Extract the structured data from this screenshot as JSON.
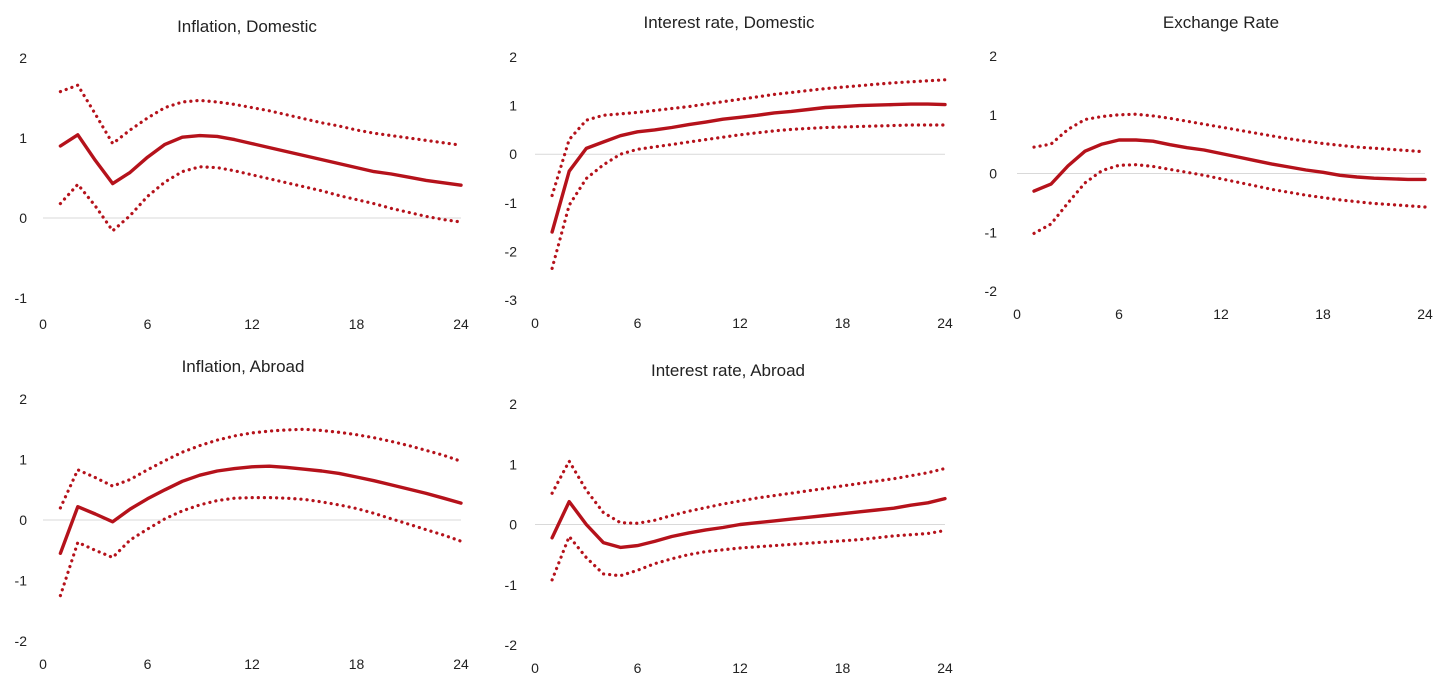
{
  "colors": {
    "line": "#b5121b",
    "zero_line": "#d9d9d9",
    "text": "#222222"
  },
  "chart_data": [
    {
      "type": "line",
      "title": "Inflation, Domestic",
      "x": [
        1,
        2,
        3,
        4,
        5,
        6,
        7,
        8,
        9,
        10,
        11,
        12,
        13,
        14,
        15,
        16,
        17,
        18,
        19,
        20,
        21,
        22,
        23,
        24
      ],
      "xticks": [
        0,
        6,
        12,
        18,
        24
      ],
      "yticks": [
        -1,
        0,
        1,
        2
      ],
      "xlim": [
        0,
        24
      ],
      "ylim": [
        -1,
        2
      ],
      "series": [
        {
          "role": "estimate",
          "style": "solid",
          "values": [
            0.9,
            1.04,
            0.72,
            0.43,
            0.57,
            0.76,
            0.92,
            1.01,
            1.03,
            1.02,
            0.98,
            0.93,
            0.88,
            0.83,
            0.78,
            0.73,
            0.68,
            0.63,
            0.58,
            0.55,
            0.51,
            0.47,
            0.44,
            0.41
          ]
        },
        {
          "role": "upper",
          "style": "dotted",
          "values": [
            1.58,
            1.66,
            1.3,
            0.93,
            1.1,
            1.25,
            1.38,
            1.45,
            1.47,
            1.45,
            1.42,
            1.38,
            1.34,
            1.29,
            1.24,
            1.19,
            1.15,
            1.1,
            1.06,
            1.03,
            1.0,
            0.97,
            0.94,
            0.91
          ]
        },
        {
          "role": "lower",
          "style": "dotted",
          "values": [
            0.18,
            0.42,
            0.15,
            -0.16,
            0.03,
            0.27,
            0.45,
            0.58,
            0.64,
            0.63,
            0.59,
            0.54,
            0.49,
            0.44,
            0.39,
            0.34,
            0.28,
            0.23,
            0.18,
            0.12,
            0.07,
            0.02,
            -0.02,
            -0.05
          ]
        }
      ]
    },
    {
      "type": "line",
      "title": "Interest rate, Domestic",
      "x": [
        1,
        2,
        3,
        4,
        5,
        6,
        7,
        8,
        9,
        10,
        11,
        12,
        13,
        14,
        15,
        16,
        17,
        18,
        19,
        20,
        21,
        22,
        23,
        24
      ],
      "xticks": [
        0,
        6,
        12,
        18,
        24
      ],
      "yticks": [
        -3,
        -2,
        -1,
        0,
        1,
        2
      ],
      "xlim": [
        0,
        24
      ],
      "ylim": [
        -3,
        2
      ],
      "series": [
        {
          "role": "estimate",
          "style": "solid",
          "values": [
            -1.6,
            -0.35,
            0.12,
            0.25,
            0.38,
            0.46,
            0.5,
            0.55,
            0.61,
            0.66,
            0.72,
            0.76,
            0.8,
            0.85,
            0.88,
            0.92,
            0.96,
            0.98,
            1.0,
            1.01,
            1.02,
            1.03,
            1.03,
            1.02
          ]
        },
        {
          "role": "upper",
          "style": "dotted",
          "values": [
            -0.85,
            0.3,
            0.7,
            0.8,
            0.83,
            0.86,
            0.9,
            0.94,
            0.98,
            1.03,
            1.08,
            1.13,
            1.18,
            1.23,
            1.27,
            1.31,
            1.35,
            1.38,
            1.41,
            1.44,
            1.47,
            1.49,
            1.51,
            1.53
          ]
        },
        {
          "role": "lower",
          "style": "dotted",
          "values": [
            -2.35,
            -1.05,
            -0.5,
            -0.22,
            0.0,
            0.1,
            0.15,
            0.2,
            0.25,
            0.3,
            0.35,
            0.4,
            0.44,
            0.48,
            0.51,
            0.53,
            0.55,
            0.56,
            0.57,
            0.58,
            0.59,
            0.6,
            0.6,
            0.6
          ]
        }
      ]
    },
    {
      "type": "line",
      "title": "Exchange Rate",
      "x": [
        1,
        2,
        3,
        4,
        5,
        6,
        7,
        8,
        9,
        10,
        11,
        12,
        13,
        14,
        15,
        16,
        17,
        18,
        19,
        20,
        21,
        22,
        23,
        24
      ],
      "xticks": [
        0,
        6,
        12,
        18,
        24
      ],
      "yticks": [
        -2,
        -1,
        0,
        1,
        2
      ],
      "xlim": [
        0,
        24
      ],
      "ylim": [
        -2,
        2
      ],
      "series": [
        {
          "role": "estimate",
          "style": "solid",
          "values": [
            -0.3,
            -0.18,
            0.13,
            0.38,
            0.5,
            0.57,
            0.57,
            0.55,
            0.49,
            0.44,
            0.4,
            0.34,
            0.28,
            0.22,
            0.16,
            0.11,
            0.06,
            0.02,
            -0.03,
            -0.06,
            -0.08,
            -0.09,
            -0.1,
            -0.1
          ]
        },
        {
          "role": "upper",
          "style": "dotted",
          "values": [
            0.45,
            0.5,
            0.75,
            0.92,
            0.97,
            1.0,
            1.01,
            0.98,
            0.94,
            0.89,
            0.84,
            0.79,
            0.74,
            0.69,
            0.64,
            0.59,
            0.55,
            0.51,
            0.48,
            0.45,
            0.43,
            0.41,
            0.39,
            0.37
          ]
        },
        {
          "role": "lower",
          "style": "dotted",
          "values": [
            -1.02,
            -0.86,
            -0.5,
            -0.16,
            0.05,
            0.14,
            0.15,
            0.12,
            0.07,
            0.02,
            -0.03,
            -0.09,
            -0.15,
            -0.21,
            -0.27,
            -0.32,
            -0.37,
            -0.41,
            -0.45,
            -0.48,
            -0.51,
            -0.53,
            -0.55,
            -0.57
          ]
        }
      ]
    },
    {
      "type": "line",
      "title": "Inflation, Abroad",
      "x": [
        1,
        2,
        3,
        4,
        5,
        6,
        7,
        8,
        9,
        10,
        11,
        12,
        13,
        14,
        15,
        16,
        17,
        18,
        19,
        20,
        21,
        22,
        23,
        24
      ],
      "xticks": [
        0,
        6,
        12,
        18,
        24
      ],
      "yticks": [
        -2,
        -1,
        0,
        1,
        2
      ],
      "xlim": [
        0,
        24
      ],
      "ylim": [
        -2,
        2
      ],
      "series": [
        {
          "role": "estimate",
          "style": "solid",
          "values": [
            -0.55,
            0.22,
            0.1,
            -0.03,
            0.18,
            0.35,
            0.5,
            0.64,
            0.74,
            0.81,
            0.85,
            0.88,
            0.89,
            0.87,
            0.84,
            0.81,
            0.77,
            0.71,
            0.65,
            0.58,
            0.51,
            0.44,
            0.36,
            0.28
          ]
        },
        {
          "role": "upper",
          "style": "dotted",
          "values": [
            0.2,
            0.83,
            0.7,
            0.56,
            0.67,
            0.83,
            0.98,
            1.12,
            1.23,
            1.32,
            1.39,
            1.44,
            1.47,
            1.49,
            1.5,
            1.48,
            1.45,
            1.41,
            1.36,
            1.3,
            1.23,
            1.15,
            1.07,
            0.97
          ]
        },
        {
          "role": "lower",
          "style": "dotted",
          "values": [
            -1.25,
            -0.37,
            -0.5,
            -0.62,
            -0.33,
            -0.15,
            0.02,
            0.15,
            0.25,
            0.32,
            0.36,
            0.37,
            0.37,
            0.36,
            0.34,
            0.3,
            0.25,
            0.19,
            0.11,
            0.02,
            -0.07,
            -0.16,
            -0.25,
            -0.35
          ]
        }
      ]
    },
    {
      "type": "line",
      "title": "Interest rate, Abroad",
      "x": [
        1,
        2,
        3,
        4,
        5,
        6,
        7,
        8,
        9,
        10,
        11,
        12,
        13,
        14,
        15,
        16,
        17,
        18,
        19,
        20,
        21,
        22,
        23,
        24
      ],
      "xticks": [
        0,
        6,
        12,
        18,
        24
      ],
      "yticks": [
        -2,
        -1,
        0,
        1,
        2
      ],
      "xlim": [
        0,
        24
      ],
      "ylim": [
        -2,
        2
      ],
      "series": [
        {
          "role": "estimate",
          "style": "solid",
          "values": [
            -0.22,
            0.38,
            0.0,
            -0.3,
            -0.38,
            -0.35,
            -0.28,
            -0.2,
            -0.14,
            -0.09,
            -0.05,
            0.0,
            0.03,
            0.06,
            0.09,
            0.12,
            0.15,
            0.18,
            0.21,
            0.24,
            0.27,
            0.32,
            0.36,
            0.43
          ]
        },
        {
          "role": "upper",
          "style": "dotted",
          "values": [
            0.52,
            1.05,
            0.57,
            0.2,
            0.03,
            0.02,
            0.07,
            0.15,
            0.22,
            0.28,
            0.34,
            0.39,
            0.44,
            0.48,
            0.52,
            0.56,
            0.6,
            0.64,
            0.68,
            0.72,
            0.76,
            0.81,
            0.86,
            0.93
          ]
        },
        {
          "role": "lower",
          "style": "dotted",
          "values": [
            -0.92,
            -0.2,
            -0.55,
            -0.82,
            -0.85,
            -0.76,
            -0.65,
            -0.57,
            -0.5,
            -0.45,
            -0.42,
            -0.39,
            -0.37,
            -0.35,
            -0.33,
            -0.31,
            -0.29,
            -0.27,
            -0.25,
            -0.22,
            -0.19,
            -0.17,
            -0.15,
            -0.1
          ]
        }
      ]
    }
  ]
}
